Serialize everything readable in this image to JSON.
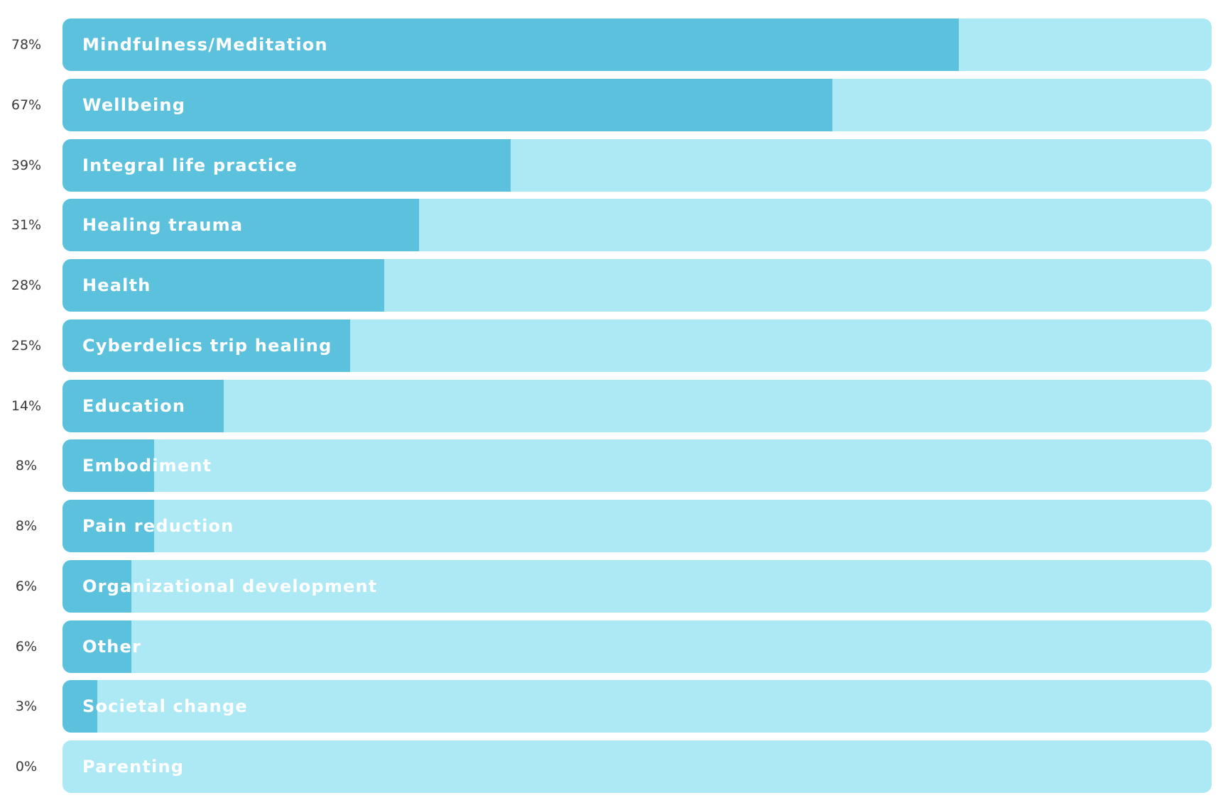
{
  "colors": {
    "track": "#ade9f5",
    "fill": "#5bc1dd",
    "label": "#ffffff",
    "percent_text": "#3a3a3a"
  },
  "chart_data": {
    "type": "bar",
    "orientation": "horizontal",
    "title": "",
    "xlabel": "",
    "ylabel": "",
    "xlim": [
      0,
      100
    ],
    "unit": "%",
    "grid": false,
    "categories": [
      "Mindfulness/Meditation",
      "Wellbeing",
      "Integral life practice",
      "Healing trauma",
      "Health",
      "Cyberdelics trip healing",
      "Education",
      "Embodiment",
      "Pain reduction",
      "Organizational development",
      "Other",
      "Societal change",
      "Parenting"
    ],
    "values": [
      78,
      67,
      39,
      31,
      28,
      25,
      14,
      8,
      8,
      6,
      6,
      3,
      0
    ],
    "value_labels": [
      "78%",
      "67%",
      "39%",
      "31%",
      "28%",
      "25%",
      "14%",
      "8%",
      "8%",
      "6%",
      "6%",
      "3%",
      "0%"
    ]
  }
}
